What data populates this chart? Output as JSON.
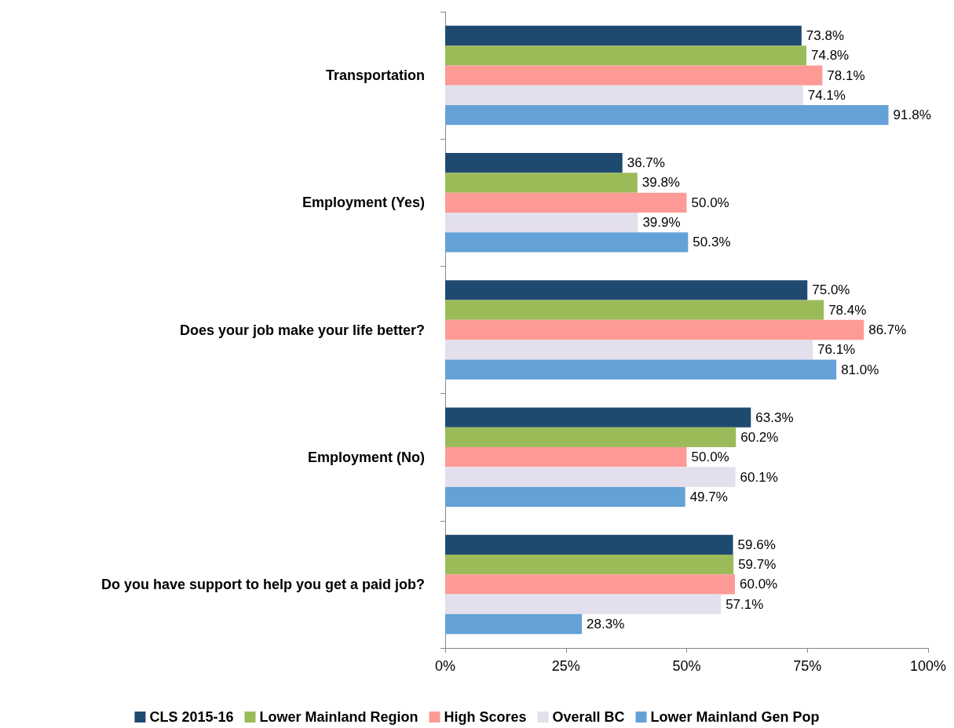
{
  "chart_data": {
    "type": "bar",
    "orientation": "horizontal",
    "categories": [
      "Transportation",
      "Employment (Yes)",
      "Does your job make your life better?",
      "Employment (No)",
      "Do you have support to help you get a paid job?"
    ],
    "series": [
      {
        "name": "CLS 2015-16",
        "color": "#1f4a70",
        "values": [
          73.8,
          36.7,
          75.0,
          63.3,
          59.6
        ],
        "value_labels": [
          "73.8%",
          "36.7%",
          "75.0%",
          "63.3%",
          "59.6%"
        ]
      },
      {
        "name": "Lower Mainland Region",
        "color": "#9bbb59",
        "values": [
          74.8,
          39.8,
          78.4,
          60.2,
          59.7
        ],
        "value_labels": [
          "74.8%",
          "39.8%",
          "78.4%",
          "60.2%",
          "59.7%"
        ]
      },
      {
        "name": "High Scores",
        "color": "#fd9a96",
        "values": [
          78.1,
          50.0,
          86.7,
          50.0,
          60.0
        ],
        "value_labels": [
          "78.1%",
          "50.0%",
          "86.7%",
          "50.0%",
          "60.0%"
        ]
      },
      {
        "name": "Overall BC",
        "color": "#e4dfec",
        "values": [
          74.1,
          39.9,
          76.1,
          60.1,
          57.1
        ],
        "value_labels": [
          "74.1%",
          "39.9%",
          "76.1%",
          "60.1%",
          "57.1%"
        ]
      },
      {
        "name": "Lower Mainland Gen Pop",
        "color": "#64a1d6",
        "values": [
          91.8,
          50.3,
          81.0,
          49.7,
          28.3
        ],
        "value_labels": [
          "91.8%",
          "50.3%",
          "81.0%",
          "49.7%",
          "28.3%"
        ]
      }
    ],
    "xlim": [
      0,
      100
    ],
    "xticks": [
      {
        "value": 0,
        "label": "0%"
      },
      {
        "value": 25,
        "label": "25%"
      },
      {
        "value": 50,
        "label": "50%"
      },
      {
        "value": 75,
        "label": "75%"
      },
      {
        "value": 100,
        "label": "100%"
      }
    ],
    "grid": false,
    "legend": "bottom"
  }
}
